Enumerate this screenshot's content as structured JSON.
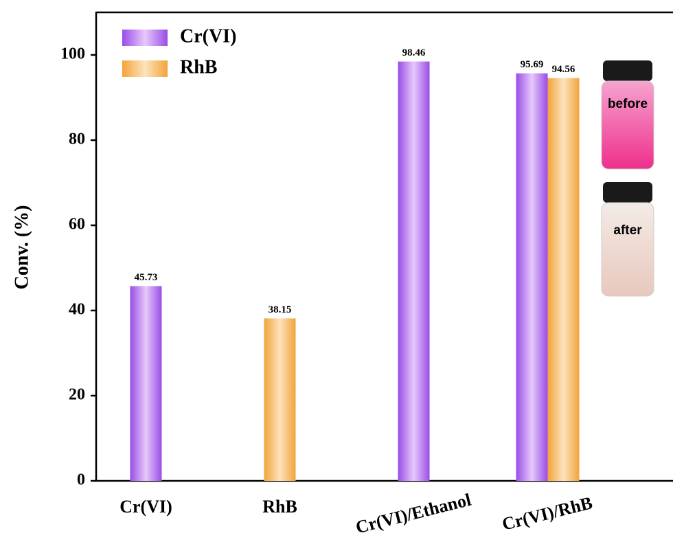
{
  "chart_data": {
    "type": "bar",
    "y_label": "Conv. (%)",
    "categories": [
      "Cr(VI)",
      "RhB",
      "Cr(VI)/Ethanol",
      "Cr(VI)/RhB"
    ],
    "series": [
      {
        "name": "Cr(VI)",
        "color": "#9a4ce6",
        "values": [
          45.73,
          null,
          98.46,
          95.69
        ]
      },
      {
        "name": "RhB",
        "color": "#f2a43a",
        "values": [
          null,
          38.15,
          null,
          94.56
        ]
      }
    ],
    "ylim": [
      0,
      110
    ],
    "yticks": [
      0,
      20,
      40,
      60,
      80,
      100
    ],
    "legend": "upper-left",
    "annotations": [
      "before",
      "after"
    ]
  }
}
